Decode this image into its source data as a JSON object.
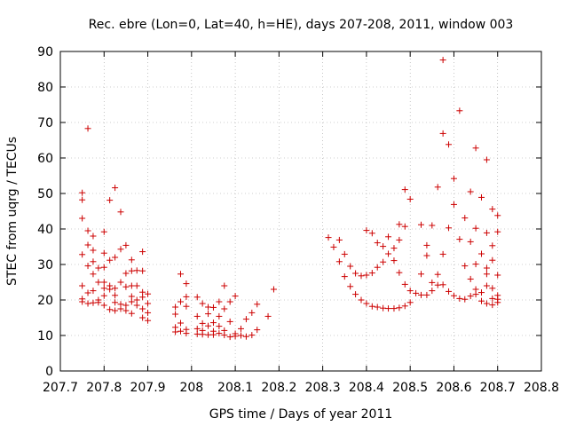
{
  "chart_data": {
    "type": "scatter",
    "title": "Rec. ebre (Lon=0, Lat=40, h=HE), days 207-208, 2011, window 003",
    "xlabel": "GPS time / Days of year 2011",
    "ylabel": "STEC from uqrg / TECUs",
    "xlim": [
      207.7,
      208.8
    ],
    "ylim": [
      0,
      90
    ],
    "x_ticks": [
      "207.7",
      "207.8",
      "207.9",
      "208",
      "208.1",
      "208.2",
      "208.3",
      "208.4",
      "208.5",
      "208.6",
      "208.7",
      "208.8"
    ],
    "x_tick_values": [
      207.7,
      207.8,
      207.9,
      208.0,
      208.1,
      208.2,
      208.3,
      208.4,
      208.5,
      208.6,
      208.7,
      208.8
    ],
    "y_ticks": [
      "0",
      "10",
      "20",
      "30",
      "40",
      "50",
      "60",
      "70",
      "80",
      "90"
    ],
    "y_tick_values": [
      0,
      10,
      20,
      30,
      40,
      50,
      60,
      70,
      80,
      90
    ],
    "grid": true,
    "marker": "+",
    "color": "#cc0000",
    "points": [
      [
        207.75,
        50.2
      ],
      [
        207.75,
        48.2
      ],
      [
        207.75,
        43.0
      ],
      [
        207.75,
        32.8
      ],
      [
        207.75,
        24.0
      ],
      [
        207.75,
        20.3
      ],
      [
        207.75,
        19.5
      ],
      [
        207.763,
        68.3
      ],
      [
        207.763,
        39.5
      ],
      [
        207.763,
        35.5
      ],
      [
        207.763,
        29.6
      ],
      [
        207.763,
        22.0
      ],
      [
        207.763,
        19.0
      ],
      [
        207.775,
        38.0
      ],
      [
        207.775,
        34.0
      ],
      [
        207.775,
        30.8
      ],
      [
        207.775,
        27.3
      ],
      [
        207.775,
        22.6
      ],
      [
        207.775,
        19.2
      ],
      [
        207.787,
        29.0
      ],
      [
        207.787,
        25.0
      ],
      [
        207.787,
        20.0
      ],
      [
        207.787,
        19.3
      ],
      [
        207.8,
        39.2
      ],
      [
        207.8,
        33.2
      ],
      [
        207.8,
        29.2
      ],
      [
        207.8,
        25.0
      ],
      [
        207.8,
        23.3
      ],
      [
        207.8,
        21.2
      ],
      [
        207.8,
        18.5
      ],
      [
        207.813,
        48.1
      ],
      [
        207.813,
        31.2
      ],
      [
        207.813,
        24.0
      ],
      [
        207.813,
        23.0
      ],
      [
        207.813,
        17.3
      ],
      [
        207.825,
        51.6
      ],
      [
        207.825,
        32.0
      ],
      [
        207.825,
        23.3
      ],
      [
        207.825,
        21.3
      ],
      [
        207.825,
        19.3
      ],
      [
        207.825,
        17.0
      ],
      [
        207.838,
        44.8
      ],
      [
        207.838,
        34.3
      ],
      [
        207.838,
        25.0
      ],
      [
        207.838,
        18.8
      ],
      [
        207.838,
        17.5
      ],
      [
        207.85,
        35.4
      ],
      [
        207.85,
        27.5
      ],
      [
        207.85,
        23.7
      ],
      [
        207.85,
        18.5
      ],
      [
        207.85,
        17.0
      ],
      [
        207.863,
        31.3
      ],
      [
        207.863,
        28.2
      ],
      [
        207.863,
        24.0
      ],
      [
        207.863,
        21.0
      ],
      [
        207.863,
        19.5
      ],
      [
        207.863,
        16.2
      ],
      [
        207.875,
        28.3
      ],
      [
        207.875,
        24.0
      ],
      [
        207.875,
        20.0
      ],
      [
        207.875,
        18.5
      ],
      [
        207.888,
        33.6
      ],
      [
        207.888,
        28.2
      ],
      [
        207.888,
        22.2
      ],
      [
        207.888,
        20.8
      ],
      [
        207.888,
        17.5
      ],
      [
        207.888,
        15.0
      ],
      [
        207.9,
        21.7
      ],
      [
        207.9,
        19.0
      ],
      [
        207.9,
        16.4
      ],
      [
        207.9,
        14.2
      ],
      [
        207.963,
        18.0
      ],
      [
        207.963,
        16.0
      ],
      [
        207.963,
        12.3
      ],
      [
        207.963,
        11.0
      ],
      [
        207.975,
        27.3
      ],
      [
        207.975,
        19.5
      ],
      [
        207.975,
        13.5
      ],
      [
        207.975,
        11.2
      ],
      [
        207.988,
        24.6
      ],
      [
        207.988,
        20.9
      ],
      [
        207.988,
        18.2
      ],
      [
        207.988,
        11.7
      ],
      [
        207.988,
        10.6
      ],
      [
        208.013,
        20.8
      ],
      [
        208.013,
        15.4
      ],
      [
        208.013,
        11.9
      ],
      [
        208.013,
        10.4
      ],
      [
        208.025,
        19.0
      ],
      [
        208.025,
        13.4
      ],
      [
        208.025,
        11.4
      ],
      [
        208.025,
        10.3
      ],
      [
        208.038,
        18.0
      ],
      [
        208.038,
        16.1
      ],
      [
        208.038,
        12.7
      ],
      [
        208.038,
        10.2
      ],
      [
        208.05,
        17.9
      ],
      [
        208.05,
        13.6
      ],
      [
        208.05,
        11.2
      ],
      [
        208.05,
        10.2
      ],
      [
        208.063,
        19.5
      ],
      [
        208.063,
        15.4
      ],
      [
        208.063,
        12.6
      ],
      [
        208.063,
        10.6
      ],
      [
        208.075,
        24.0
      ],
      [
        208.075,
        17.5
      ],
      [
        208.075,
        11.4
      ],
      [
        208.075,
        10.1
      ],
      [
        208.088,
        19.5
      ],
      [
        208.088,
        13.9
      ],
      [
        208.088,
        9.6
      ],
      [
        208.1,
        21.1
      ],
      [
        208.1,
        10.5
      ],
      [
        208.1,
        9.8
      ],
      [
        208.113,
        11.9
      ],
      [
        208.113,
        10.0
      ],
      [
        208.125,
        14.6
      ],
      [
        208.125,
        9.7
      ],
      [
        208.138,
        16.4
      ],
      [
        208.138,
        10.1
      ],
      [
        208.15,
        18.8
      ],
      [
        208.15,
        11.6
      ],
      [
        208.175,
        15.4
      ],
      [
        208.188,
        23.0
      ],
      [
        208.313,
        37.6
      ],
      [
        208.325,
        34.9
      ],
      [
        208.338,
        36.9
      ],
      [
        208.338,
        30.8
      ],
      [
        208.35,
        32.9
      ],
      [
        208.35,
        26.6
      ],
      [
        208.363,
        29.5
      ],
      [
        208.363,
        23.8
      ],
      [
        208.375,
        27.5
      ],
      [
        208.375,
        21.6
      ],
      [
        208.388,
        26.8
      ],
      [
        208.388,
        20.0
      ],
      [
        208.4,
        39.6
      ],
      [
        208.4,
        27.0
      ],
      [
        208.4,
        19.0
      ],
      [
        208.413,
        38.8
      ],
      [
        208.413,
        27.6
      ],
      [
        208.413,
        18.2
      ],
      [
        208.425,
        36.1
      ],
      [
        208.425,
        29.2
      ],
      [
        208.425,
        18.0
      ],
      [
        208.438,
        35.1
      ],
      [
        208.438,
        30.7
      ],
      [
        208.438,
        17.7
      ],
      [
        208.45,
        37.8
      ],
      [
        208.45,
        33.0
      ],
      [
        208.45,
        17.6
      ],
      [
        208.463,
        34.6
      ],
      [
        208.463,
        31.1
      ],
      [
        208.463,
        17.6
      ],
      [
        208.475,
        41.3
      ],
      [
        208.475,
        36.9
      ],
      [
        208.475,
        27.7
      ],
      [
        208.475,
        17.8
      ],
      [
        208.488,
        51.1
      ],
      [
        208.488,
        40.7
      ],
      [
        208.488,
        24.4
      ],
      [
        208.488,
        18.3
      ],
      [
        208.5,
        48.4
      ],
      [
        208.5,
        22.6
      ],
      [
        208.5,
        19.3
      ],
      [
        208.513,
        21.9
      ],
      [
        208.525,
        41.2
      ],
      [
        208.525,
        27.3
      ],
      [
        208.525,
        21.4
      ],
      [
        208.538,
        35.4
      ],
      [
        208.538,
        32.5
      ],
      [
        208.538,
        21.4
      ],
      [
        208.55,
        41.0
      ],
      [
        208.55,
        24.9
      ],
      [
        208.55,
        22.6
      ],
      [
        208.563,
        51.8
      ],
      [
        208.563,
        27.2
      ],
      [
        208.563,
        24.2
      ],
      [
        208.575,
        87.6
      ],
      [
        208.575,
        66.9
      ],
      [
        208.575,
        32.9
      ],
      [
        208.575,
        24.3
      ],
      [
        208.588,
        63.8
      ],
      [
        208.588,
        40.3
      ],
      [
        208.588,
        22.4
      ],
      [
        208.6,
        54.2
      ],
      [
        208.6,
        46.9
      ],
      [
        208.6,
        21.2
      ],
      [
        208.613,
        73.3
      ],
      [
        208.613,
        37.1
      ],
      [
        208.613,
        20.4
      ],
      [
        208.625,
        43.1
      ],
      [
        208.625,
        29.6
      ],
      [
        208.625,
        20.2
      ],
      [
        208.638,
        50.5
      ],
      [
        208.638,
        36.4
      ],
      [
        208.638,
        25.9
      ],
      [
        208.638,
        21.1
      ],
      [
        208.65,
        62.8
      ],
      [
        208.65,
        40.2
      ],
      [
        208.65,
        30.1
      ],
      [
        208.65,
        23.0
      ],
      [
        208.65,
        21.6
      ],
      [
        208.663,
        48.9
      ],
      [
        208.663,
        33.0
      ],
      [
        208.663,
        22.1
      ],
      [
        208.663,
        19.7
      ],
      [
        208.675,
        59.5
      ],
      [
        208.675,
        38.9
      ],
      [
        208.675,
        29.0
      ],
      [
        208.675,
        27.3
      ],
      [
        208.675,
        24.0
      ],
      [
        208.675,
        19.0
      ],
      [
        208.688,
        45.6
      ],
      [
        208.688,
        35.3
      ],
      [
        208.688,
        31.2
      ],
      [
        208.688,
        23.3
      ],
      [
        208.688,
        20.4
      ],
      [
        208.688,
        18.6
      ],
      [
        208.7,
        43.8
      ],
      [
        208.7,
        39.2
      ],
      [
        208.7,
        27.0
      ],
      [
        208.7,
        21.3
      ],
      [
        208.7,
        20.2
      ],
      [
        208.7,
        19.3
      ]
    ]
  }
}
